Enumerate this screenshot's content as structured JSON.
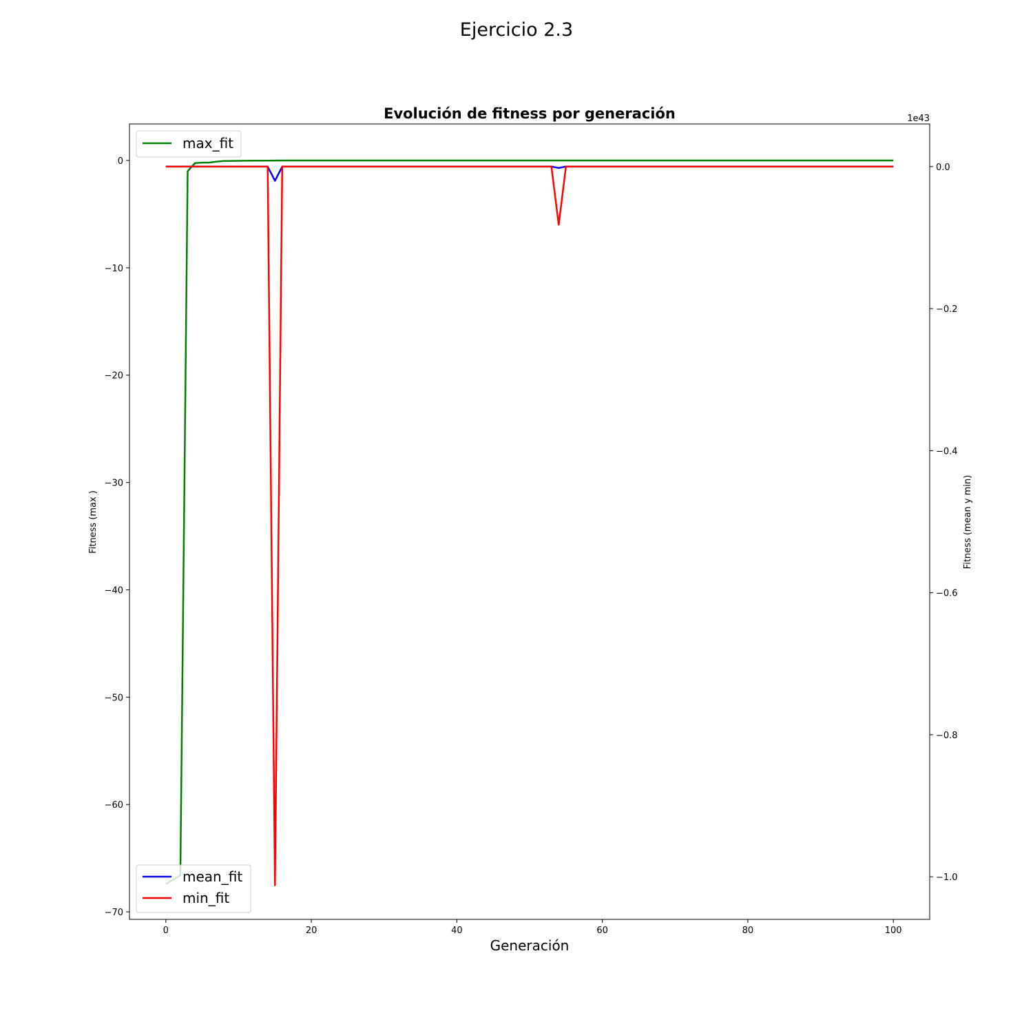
{
  "figure_title": "Ejercicio 2.3",
  "chart_data": {
    "type": "line",
    "title": "Evolución de fitness por generación",
    "xlabel": "Generación",
    "ylabel_left": "Fitness (max )",
    "ylabel_right": "Fitness (mean y min)",
    "right_axis_offset_text": "1e43",
    "right_axis_scale": 1e+43,
    "xlim": [
      -5,
      105
    ],
    "ylim_left": [
      -70.7,
      3.4
    ],
    "ylim_right": [
      -1.06,
      0.06
    ],
    "x_ticks": [
      0,
      20,
      40,
      60,
      80,
      100
    ],
    "x_tick_labels": [
      "0",
      "20",
      "40",
      "60",
      "80",
      "100"
    ],
    "y_ticks_left": [
      0,
      -10,
      -20,
      -30,
      -40,
      -50,
      -60,
      -70
    ],
    "y_tick_labels_left": [
      "0",
      "−10",
      "−20",
      "−30",
      "−40",
      "−50",
      "−60",
      "−70"
    ],
    "y_ticks_right": [
      0.0,
      -0.2,
      -0.4,
      -0.6,
      -0.8,
      -1.0
    ],
    "y_tick_labels_right": [
      "0.0",
      "−0.2",
      "−0.4",
      "−0.6",
      "−0.8",
      "−1.0"
    ],
    "grid": false,
    "legend_left": {
      "position": "upper-left",
      "entries": [
        "max_fit"
      ]
    },
    "legend_right": {
      "position": "lower-left",
      "entries": [
        "mean_fit",
        "min_fit"
      ]
    },
    "series": [
      {
        "name": "max_fit",
        "axis": "left",
        "color": "#008000",
        "x": [
          0,
          1,
          2,
          3,
          4,
          5,
          6,
          7,
          8,
          9,
          10,
          12,
          14,
          16,
          20,
          30,
          40,
          50,
          60,
          70,
          80,
          90,
          100
        ],
        "y": [
          -67.4,
          -67.0,
          -66.6,
          -1.0,
          -0.25,
          -0.2,
          -0.2,
          -0.1,
          -0.05,
          -0.04,
          -0.03,
          -0.02,
          -0.01,
          0,
          0,
          0,
          0,
          0,
          0,
          0,
          0,
          0,
          0
        ]
      },
      {
        "name": "mean_fit",
        "axis": "right",
        "color": "#0000ff",
        "x": [
          0,
          14,
          15,
          16,
          53,
          54,
          55,
          100
        ],
        "y": [
          0,
          0,
          -0.02,
          0,
          0,
          -0.002,
          0,
          0
        ]
      },
      {
        "name": "min_fit",
        "axis": "right",
        "color": "#ff0000",
        "x": [
          0,
          14,
          15,
          16,
          53,
          54,
          55,
          100
        ],
        "y": [
          0,
          0,
          -1.012,
          0,
          0,
          -0.082,
          0,
          0
        ]
      }
    ]
  }
}
